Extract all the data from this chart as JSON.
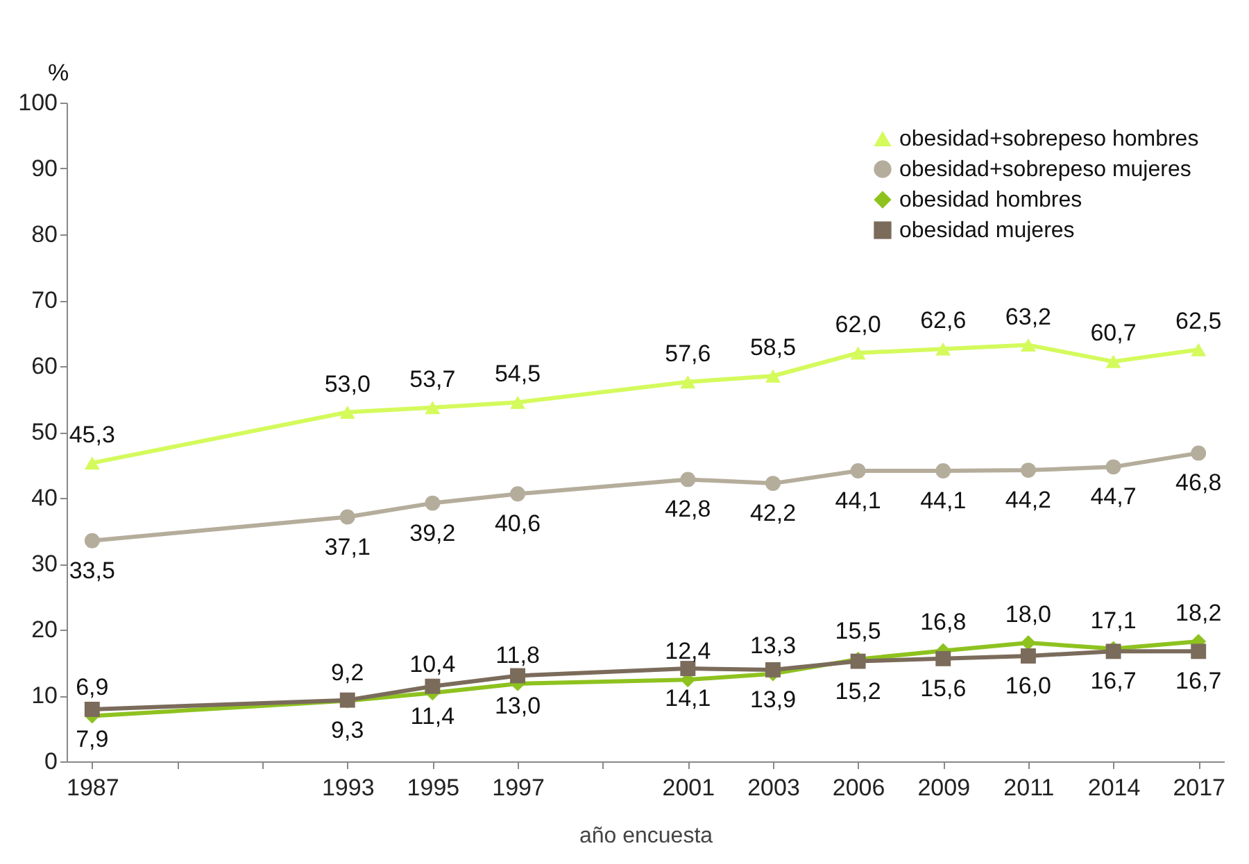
{
  "chart_data": {
    "type": "line",
    "xlabel": "año encuesta",
    "ylabel": "%",
    "categories": [
      "1987",
      null,
      null,
      "1993",
      "1995",
      "1997",
      null,
      "2001",
      "2003",
      "2006",
      "2009",
      "2011",
      "2014",
      "2017"
    ],
    "ylim": [
      0,
      100
    ],
    "yticks": [
      0,
      10,
      20,
      30,
      40,
      50,
      60,
      70,
      80,
      90,
      100
    ],
    "legend": "top right",
    "line_style": "solid",
    "series": [
      {
        "name": "obesidad+sobrepeso hombres",
        "color": "#d4fa5c",
        "marker": "triangle",
        "values": [
          45.3,
          null,
          null,
          53.0,
          53.7,
          54.5,
          null,
          57.6,
          58.5,
          62.0,
          62.6,
          63.2,
          60.7,
          62.5
        ],
        "value_labels": [
          "45,3",
          null,
          null,
          "53,0",
          "53,7",
          "54,5",
          null,
          "57,6",
          "58,5",
          "62,0",
          "62,6",
          "63,2",
          "60,7",
          "62,5"
        ]
      },
      {
        "name": "obesidad+sobrepeso mujeres",
        "color": "#b5ad9b",
        "marker": "circle",
        "values": [
          33.5,
          null,
          null,
          37.1,
          39.2,
          40.6,
          null,
          42.8,
          42.2,
          44.1,
          44.1,
          44.2,
          44.7,
          46.8
        ],
        "value_labels": [
          "33,5",
          null,
          null,
          "37,1",
          "39,2",
          "40,6",
          null,
          "42,8",
          "42,2",
          "44,1",
          "44,1",
          "44,2",
          "44,7",
          "46,8"
        ]
      },
      {
        "name": "obesidad hombres",
        "color": "#8ec21f",
        "marker": "diamond",
        "values": [
          6.9,
          null,
          null,
          9.2,
          10.4,
          11.8,
          null,
          12.4,
          13.3,
          15.5,
          16.8,
          18.0,
          17.1,
          18.2
        ],
        "value_labels": [
          "6,9",
          null,
          null,
          "9,2",
          "10,4",
          "11,8",
          null,
          "12,4",
          "13,3",
          "15,5",
          "16,8",
          "18,0",
          "17,1",
          "18,2"
        ]
      },
      {
        "name": "obesidad mujeres",
        "color": "#7b6b5b",
        "marker": "square",
        "values": [
          7.9,
          null,
          null,
          9.3,
          11.4,
          13.0,
          null,
          14.1,
          13.9,
          15.2,
          15.6,
          16.0,
          16.7,
          16.7
        ],
        "value_labels": [
          "7,9",
          null,
          null,
          "9,3",
          "11,4",
          "13,0",
          null,
          "14,1",
          "13,9",
          "15,2",
          "15,6",
          "16,0",
          "16,7",
          "16,7"
        ]
      }
    ]
  }
}
